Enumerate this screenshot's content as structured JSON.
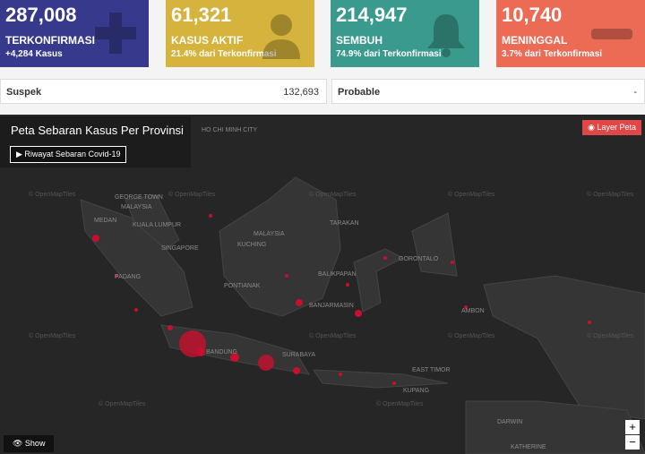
{
  "cards": [
    {
      "value": "287,008",
      "label": "TERKONFIRMASI",
      "sub": "+4,284 Kasus"
    },
    {
      "value": "61,321",
      "label": "KASUS AKTIF",
      "sub": "21.4% dari Terkonfirmasi"
    },
    {
      "value": "214,947",
      "label": "SEMBUH",
      "sub": "74.9% dari Terkonfirmasi"
    },
    {
      "value": "10,740",
      "label": "MENINGGAL",
      "sub": "3.7% dari Terkonfirmasi"
    }
  ],
  "stats": [
    {
      "label": "Suspek",
      "value": "132,693"
    },
    {
      "label": "Probable",
      "value": "-"
    }
  ],
  "map": {
    "title": "Peta Sebaran Kasus Per Provinsi",
    "history_button": "▶ Riwayat Sebaran Covid-19",
    "layer_button": "◉ Layer Peta",
    "show_button": "👁 Show",
    "zoom_in": "+",
    "zoom_out": "−",
    "attribution": "© OpenMapTiles",
    "places": [
      "HO CHI MINH CITY",
      "GEORGE TOWN",
      "MALAYSIA",
      "MEDAN",
      "KUALA LUMPUR",
      "SINGAPORE",
      "PADANG",
      "KUCHING",
      "MALAYSIA",
      "TARAKAN",
      "PONTIANAK",
      "BALIKPAPAN",
      "BANJARMASIN",
      "GORONTALO",
      "BANDUNG",
      "SURABAYA",
      "AMBON",
      "EAST TIMOR",
      "KUPANG",
      "DARWIN",
      "KATHERINE"
    ]
  }
}
